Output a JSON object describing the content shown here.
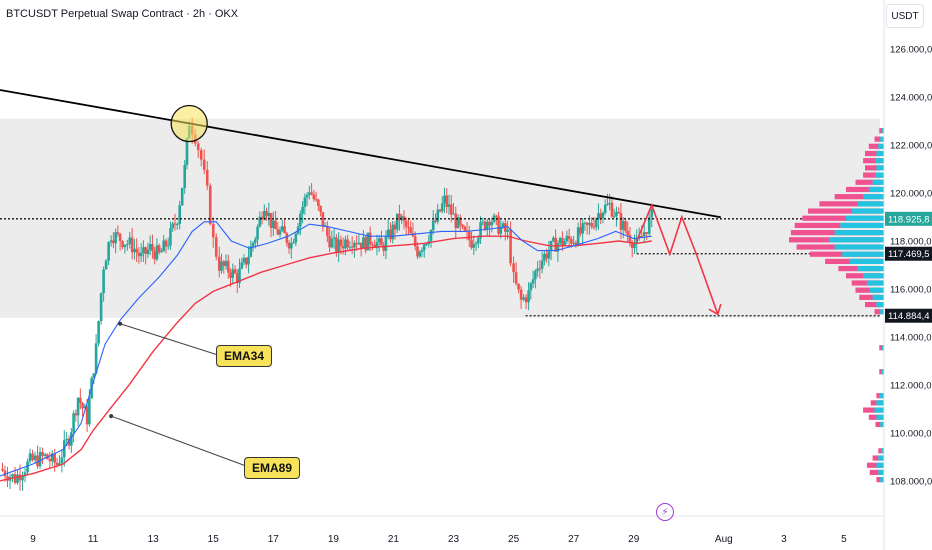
{
  "header": {
    "title": "BTCUSDT Perpetual Swap Contract · 2h · OKX",
    "unit": "USDT"
  },
  "annotations": {
    "ema34_label": "EMA34",
    "ema89_label": "EMA89",
    "lightning_icon": "lightning-icon"
  },
  "colors": {
    "up": "#26a69a",
    "down": "#ef5350",
    "ema34": "#2962ff",
    "ema89": "#f23645",
    "trend": "#000000",
    "zone": "#ececec",
    "vp_pos": "#24c4e0",
    "vp_neg": "#f0518f",
    "path": "#f23645",
    "label_bg": "#f7e25a"
  },
  "chart_data": {
    "type": "candlestick",
    "ylim": [
      107200,
      126800
    ],
    "y_ticks": [
      "126.000,0",
      "124.000,0",
      "122.000,0",
      "120.000,0",
      "118.000,0",
      "116.000,0",
      "114.000,0",
      "112.000,0",
      "110.000,0",
      "108.000,0"
    ],
    "y_tick_values": [
      126000,
      124000,
      122000,
      120000,
      118000,
      116000,
      114000,
      112000,
      110000,
      108000
    ],
    "x_ticks": [
      "9",
      "11",
      "13",
      "15",
      "17",
      "19",
      "21",
      "23",
      "25",
      "27",
      "29",
      "Aug",
      "3",
      "5"
    ],
    "x_tick_days": [
      9,
      11,
      13,
      15,
      17,
      19,
      21,
      23,
      25,
      27,
      29,
      32,
      34,
      36
    ],
    "x_range_days": [
      7.9,
      37.2
    ],
    "price_labels": [
      {
        "value": 118925.8,
        "text": "118.925,8",
        "color": "#26a69a"
      },
      {
        "value": 117469.5,
        "text": "117.469,5",
        "color": "#131722"
      },
      {
        "value": 114884.4,
        "text": "114.884,4",
        "color": "#131722"
      }
    ],
    "resistance_zone": [
      114800,
      123100
    ],
    "dotted_levels": [
      {
        "value": 118925.8,
        "from_day": 7.9
      },
      {
        "value": 117469.5,
        "from_day": 29.1
      },
      {
        "value": 114884.4,
        "from_day": 25.4
      }
    ],
    "trendline": [
      [
        7.9,
        124300
      ],
      [
        31.9,
        118990
      ]
    ],
    "projected_path": [
      [
        29.1,
        118000
      ],
      [
        29.6,
        119500
      ],
      [
        30.2,
        117450
      ],
      [
        30.6,
        119000
      ],
      [
        31.1,
        117400
      ],
      [
        31.8,
        114950
      ]
    ],
    "circle_highlight": {
      "day": 14.2,
      "value": 122900
    },
    "ema34_anchor": {
      "day": 11.9,
      "value": 114550
    },
    "ema89_anchor": {
      "day": 11.6,
      "value": 110700
    },
    "price_path": [
      [
        7.9,
        108500
      ],
      [
        8.4,
        108100
      ],
      [
        8.9,
        108800
      ],
      [
        9.4,
        109000
      ],
      [
        9.8,
        108700
      ],
      [
        10.2,
        109800
      ],
      [
        10.5,
        111500
      ],
      [
        10.8,
        110600
      ],
      [
        11.1,
        113500
      ],
      [
        11.35,
        117000
      ],
      [
        11.6,
        118300
      ],
      [
        11.9,
        118100
      ],
      [
        12.3,
        117800
      ],
      [
        12.6,
        117300
      ],
      [
        12.9,
        117700
      ],
      [
        13.2,
        117400
      ],
      [
        13.5,
        118000
      ],
      [
        13.8,
        119000
      ],
      [
        14.05,
        121000
      ],
      [
        14.2,
        123000
      ],
      [
        14.4,
        122400
      ],
      [
        14.6,
        121400
      ],
      [
        14.8,
        120000
      ],
      [
        15.0,
        118000
      ],
      [
        15.2,
        117000
      ],
      [
        15.5,
        116800
      ],
      [
        15.8,
        116500
      ],
      [
        16.1,
        117200
      ],
      [
        16.4,
        118200
      ],
      [
        16.7,
        119600
      ],
      [
        17.0,
        118500
      ],
      [
        17.3,
        118300
      ],
      [
        17.6,
        117900
      ],
      [
        17.9,
        119200
      ],
      [
        18.2,
        120200
      ],
      [
        18.5,
        119300
      ],
      [
        18.8,
        118200
      ],
      [
        19.1,
        117700
      ],
      [
        19.4,
        118000
      ],
      [
        19.7,
        118100
      ],
      [
        20.0,
        117900
      ],
      [
        20.3,
        118100
      ],
      [
        20.6,
        117700
      ],
      [
        20.9,
        118300
      ],
      [
        21.2,
        119000
      ],
      [
        21.5,
        118400
      ],
      [
        21.8,
        117600
      ],
      [
        22.1,
        118100
      ],
      [
        22.4,
        118800
      ],
      [
        22.7,
        119700
      ],
      [
        23.0,
        119000
      ],
      [
        23.3,
        118300
      ],
      [
        23.6,
        118000
      ],
      [
        23.9,
        118500
      ],
      [
        24.2,
        119000
      ],
      [
        24.5,
        118600
      ],
      [
        24.8,
        118300
      ],
      [
        25.0,
        116400
      ],
      [
        25.25,
        115500
      ],
      [
        25.5,
        115800
      ],
      [
        25.8,
        117000
      ],
      [
        26.1,
        117500
      ],
      [
        26.4,
        117900
      ],
      [
        26.7,
        118000
      ],
      [
        27.0,
        118100
      ],
      [
        27.3,
        118400
      ],
      [
        27.6,
        118700
      ],
      [
        27.9,
        119300
      ],
      [
        28.2,
        119500
      ],
      [
        28.5,
        118900
      ],
      [
        28.8,
        118300
      ],
      [
        29.1,
        117800
      ],
      [
        29.35,
        118400
      ],
      [
        29.6,
        119000
      ]
    ],
    "ema34": [
      [
        7.9,
        108200
      ],
      [
        9.0,
        108700
      ],
      [
        10.0,
        109300
      ],
      [
        10.6,
        110400
      ],
      [
        11.0,
        112100
      ],
      [
        11.4,
        113700
      ],
      [
        11.9,
        114700
      ],
      [
        12.5,
        115600
      ],
      [
        13.2,
        116500
      ],
      [
        13.8,
        117400
      ],
      [
        14.3,
        118400
      ],
      [
        14.7,
        118800
      ],
      [
        15.1,
        118800
      ],
      [
        15.6,
        118000
      ],
      [
        16.2,
        117700
      ],
      [
        16.8,
        117900
      ],
      [
        17.5,
        118200
      ],
      [
        18.2,
        118700
      ],
      [
        18.8,
        118600
      ],
      [
        19.5,
        118400
      ],
      [
        20.2,
        118200
      ],
      [
        21.0,
        118200
      ],
      [
        21.8,
        118300
      ],
      [
        22.6,
        118400
      ],
      [
        23.4,
        118400
      ],
      [
        24.2,
        118500
      ],
      [
        24.8,
        118600
      ],
      [
        25.3,
        118000
      ],
      [
        25.8,
        117600
      ],
      [
        26.4,
        117600
      ],
      [
        27.0,
        117800
      ],
      [
        27.8,
        118100
      ],
      [
        28.4,
        118400
      ],
      [
        29.0,
        118100
      ],
      [
        29.6,
        118200
      ]
    ],
    "ema89": [
      [
        7.9,
        108000
      ],
      [
        9.0,
        108300
      ],
      [
        10.0,
        108700
      ],
      [
        10.6,
        109300
      ],
      [
        11.0,
        110100
      ],
      [
        11.5,
        110900
      ],
      [
        12.2,
        112000
      ],
      [
        13.0,
        113400
      ],
      [
        13.8,
        114600
      ],
      [
        14.4,
        115400
      ],
      [
        15.0,
        115900
      ],
      [
        15.8,
        116300
      ],
      [
        16.6,
        116700
      ],
      [
        17.4,
        117000
      ],
      [
        18.2,
        117300
      ],
      [
        19.0,
        117500
      ],
      [
        20.0,
        117700
      ],
      [
        21.0,
        117800
      ],
      [
        22.0,
        117900
      ],
      [
        23.0,
        118100
      ],
      [
        24.0,
        118200
      ],
      [
        24.8,
        118200
      ],
      [
        25.4,
        118000
      ],
      [
        26.2,
        117800
      ],
      [
        27.0,
        117800
      ],
      [
        27.8,
        117900
      ],
      [
        28.5,
        118000
      ],
      [
        29.1,
        117900
      ],
      [
        29.6,
        118000
      ]
    ],
    "volume_profile": [
      [
        122600,
        0.05,
        0.02
      ],
      [
        122250,
        0.1,
        0.04
      ],
      [
        121950,
        0.16,
        0.06
      ],
      [
        121650,
        0.2,
        0.08
      ],
      [
        121350,
        0.22,
        0.09
      ],
      [
        121050,
        0.2,
        0.08
      ],
      [
        120750,
        0.22,
        0.09
      ],
      [
        120450,
        0.3,
        0.12
      ],
      [
        120150,
        0.4,
        0.16
      ],
      [
        119850,
        0.52,
        0.22
      ],
      [
        119550,
        0.68,
        0.28
      ],
      [
        119250,
        0.8,
        0.34
      ],
      [
        118950,
        0.86,
        0.4
      ],
      [
        118650,
        0.94,
        0.46
      ],
      [
        118350,
        0.98,
        0.52
      ],
      [
        118050,
        1.0,
        0.58
      ],
      [
        117750,
        0.92,
        0.52
      ],
      [
        117450,
        0.78,
        0.44
      ],
      [
        117150,
        0.62,
        0.36
      ],
      [
        116850,
        0.48,
        0.28
      ],
      [
        116550,
        0.4,
        0.22
      ],
      [
        116250,
        0.34,
        0.18
      ],
      [
        115950,
        0.3,
        0.15
      ],
      [
        115650,
        0.26,
        0.12
      ],
      [
        115350,
        0.2,
        0.08
      ],
      [
        115050,
        0.1,
        0.04
      ],
      [
        113550,
        0.05,
        0.02
      ],
      [
        112550,
        0.05,
        0.03
      ],
      [
        111550,
        0.08,
        0.05
      ],
      [
        111250,
        0.14,
        0.08
      ],
      [
        110950,
        0.22,
        0.1
      ],
      [
        110650,
        0.16,
        0.08
      ],
      [
        110350,
        0.09,
        0.04
      ],
      [
        109250,
        0.06,
        0.03
      ],
      [
        108950,
        0.12,
        0.06
      ],
      [
        108650,
        0.18,
        0.08
      ],
      [
        108350,
        0.15,
        0.06
      ],
      [
        108050,
        0.08,
        0.04
      ]
    ]
  }
}
